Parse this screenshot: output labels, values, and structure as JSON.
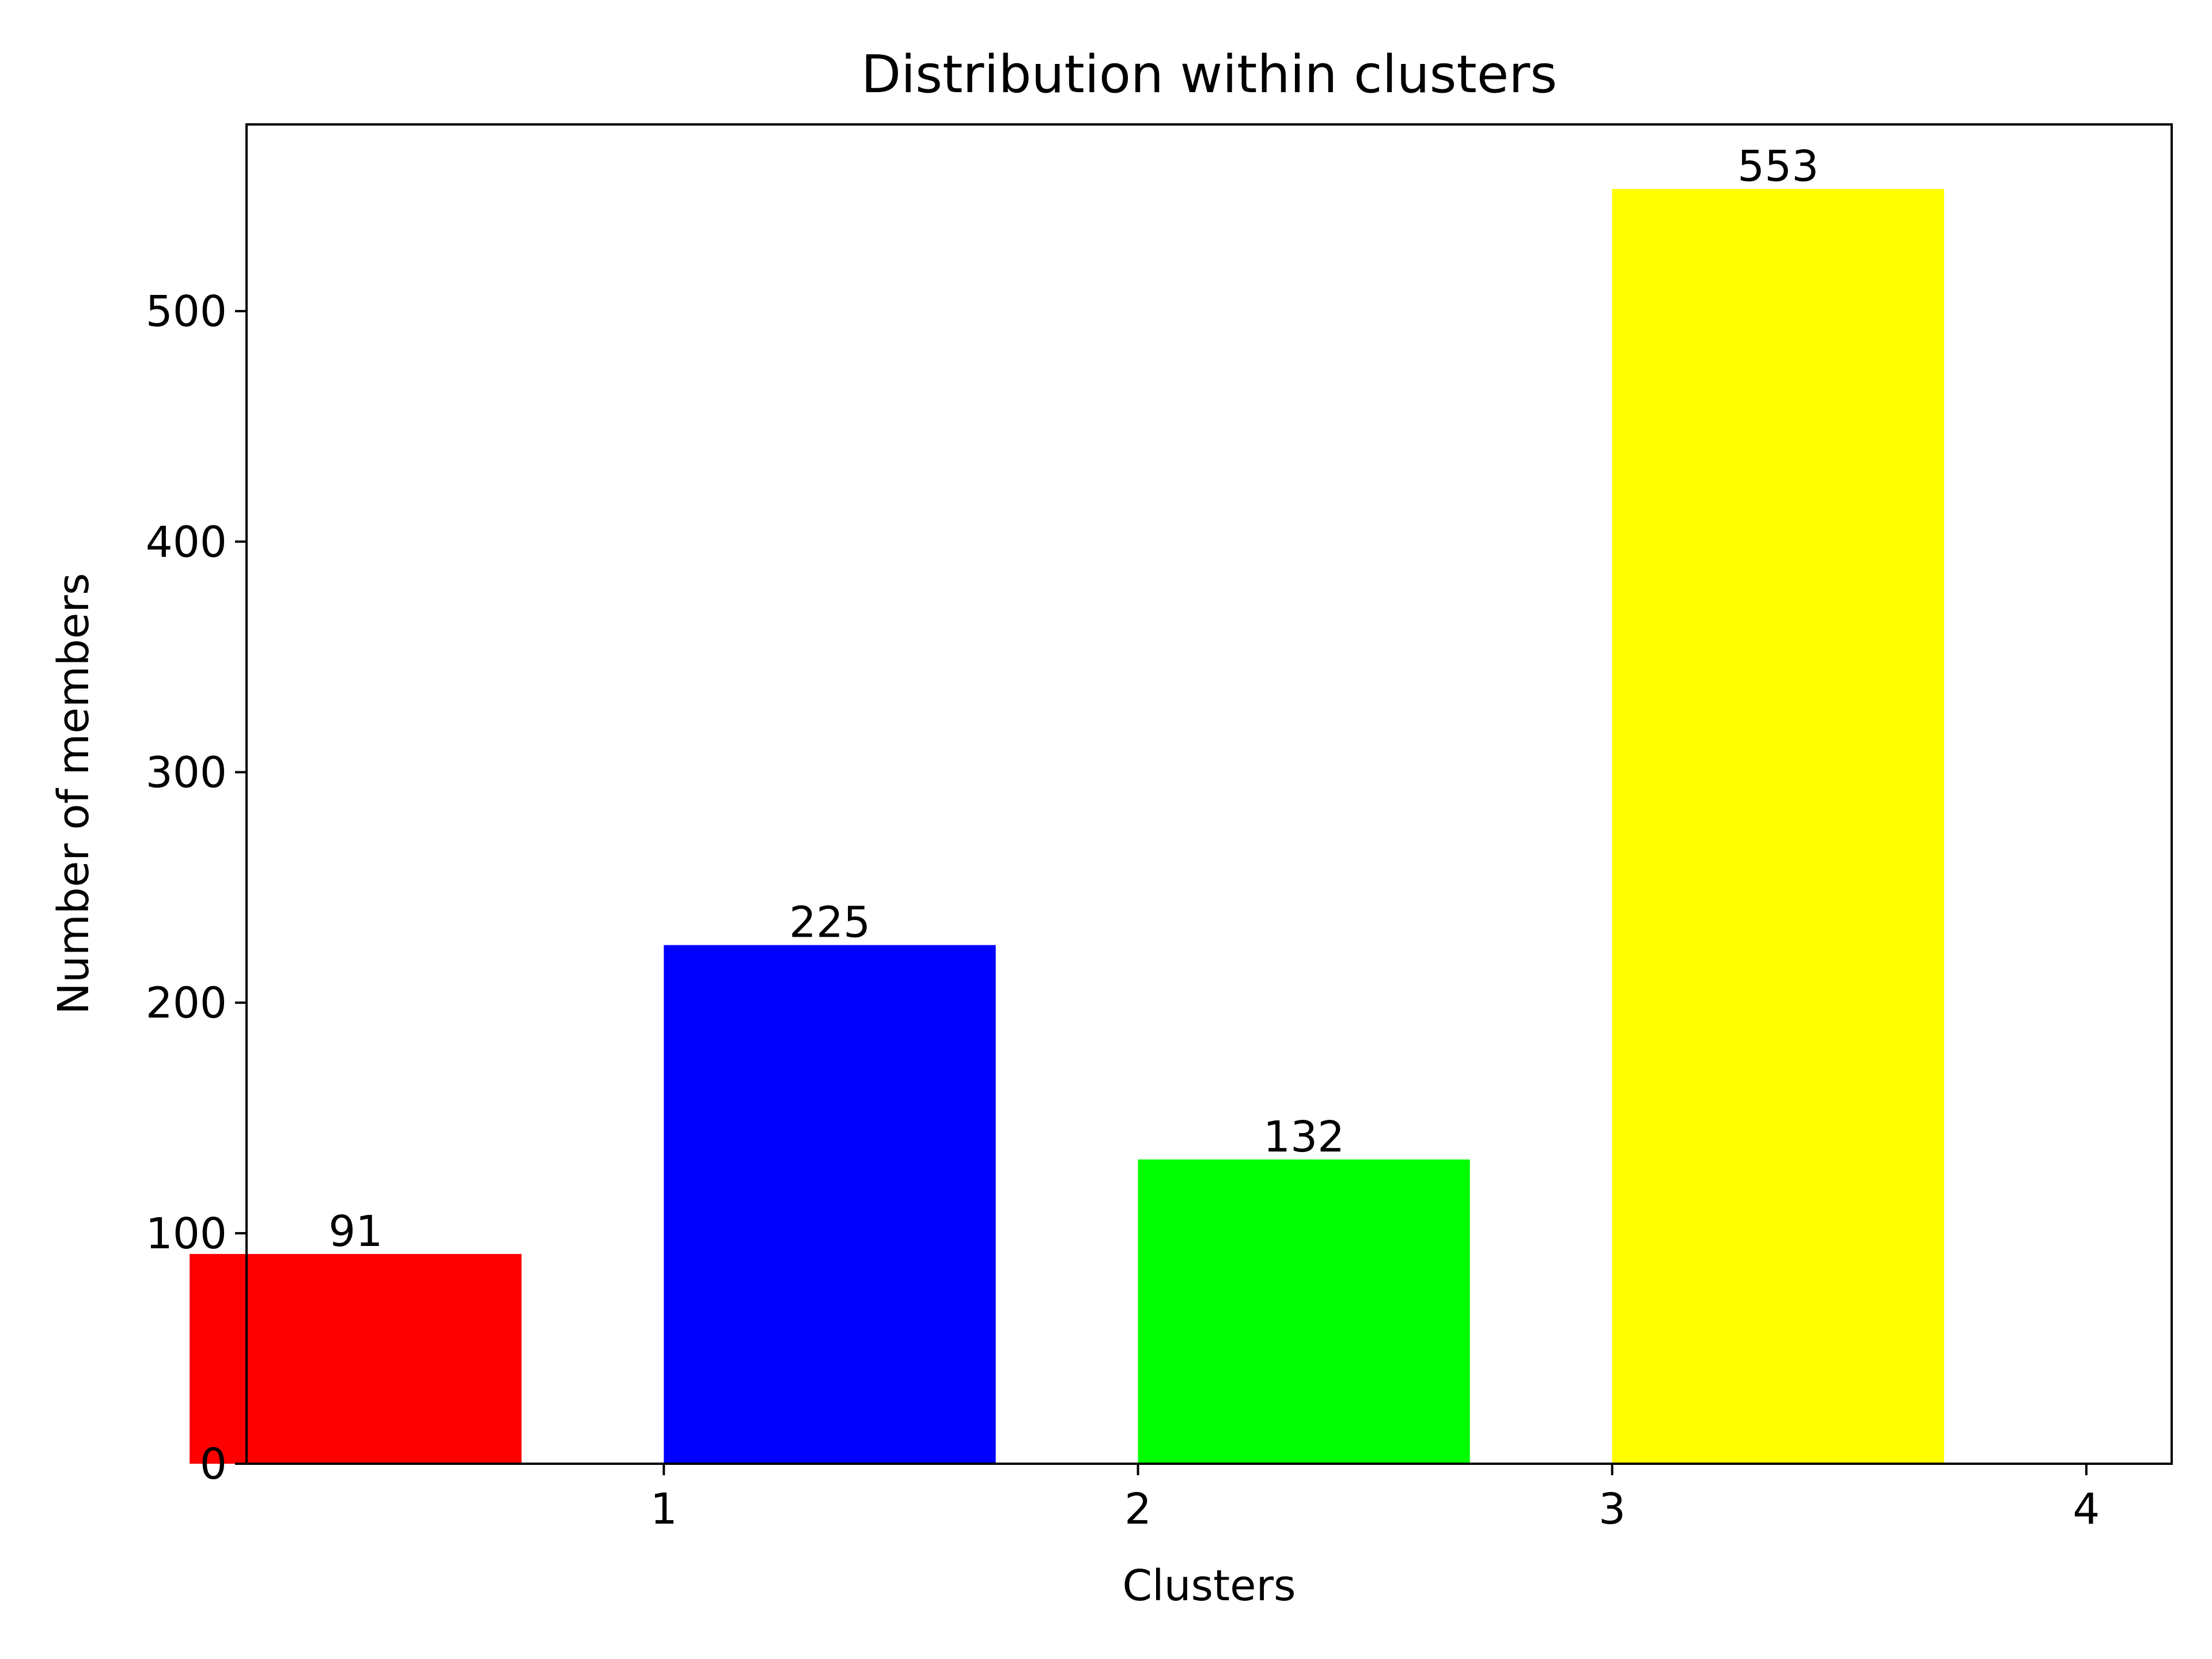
{
  "chart_data": {
    "type": "bar",
    "title": "Distribution within clusters",
    "xlabel": "Clusters",
    "ylabel": "Number of members",
    "categories": [
      "1",
      "2",
      "3",
      "4"
    ],
    "values": [
      91,
      225,
      132,
      553
    ],
    "bar_colors": [
      "#ff0000",
      "#0000ff",
      "#00ff00",
      "#ffff00"
    ],
    "data_labels": [
      "91",
      "225",
      "132",
      "553"
    ],
    "ylim": [
      0,
      581
    ],
    "yticks": [
      0,
      100,
      200,
      300,
      400,
      500
    ],
    "ytick_labels": [
      "0",
      "100",
      "200",
      "300",
      "400",
      "500"
    ],
    "xlim": [
      0.12,
      4.18
    ],
    "xticks": [
      1,
      2,
      3,
      4
    ],
    "xtick_labels": [
      "1",
      "2",
      "3",
      "4"
    ],
    "bar_span": [
      0.3,
      1.0
    ],
    "grid": false,
    "legend": "none"
  }
}
